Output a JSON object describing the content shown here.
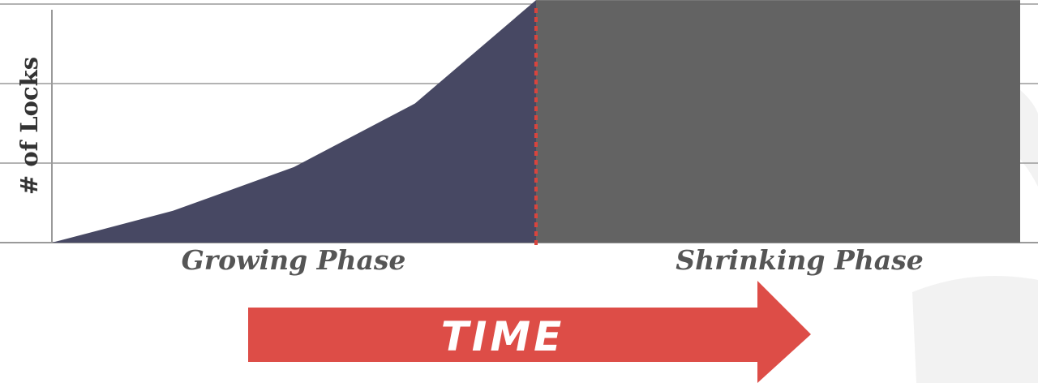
{
  "chart_data": {
    "type": "area",
    "title": "",
    "ylabel": "# of Locks",
    "xlabel": "",
    "x": [
      0,
      1,
      2,
      3,
      4
    ],
    "x_range": [
      0,
      8
    ],
    "ylim": [
      0,
      3
    ],
    "grid": true,
    "series": [
      {
        "name": "",
        "phase": "growing",
        "x": [
          0,
          1,
          2,
          3,
          4
        ],
        "values": [
          0,
          0.4,
          0.95,
          1.75,
          3.05
        ]
      },
      {
        "name": "",
        "phase": "shrinking",
        "x": [
          4,
          8
        ],
        "values": [
          3.05,
          3.05
        ]
      }
    ],
    "lock_point_x": 4,
    "annotations": {
      "growing": "Growing Phase",
      "shrinking": "Shrinking Phase",
      "time_arrow": "TIME"
    },
    "colors": {
      "growing": "#474863",
      "shrinking": "#636363",
      "lock_point_line": "#d9443d",
      "time_arrow": "#dd4d47",
      "grid": "#9a9a9a"
    }
  }
}
